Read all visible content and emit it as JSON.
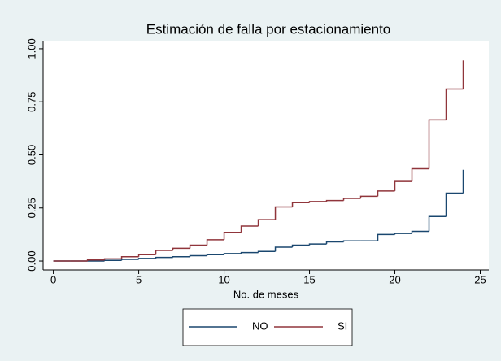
{
  "chart_data": {
    "type": "step",
    "title": "Estimación de falla por estacionamiento",
    "x_label": "No. de meses",
    "x": [
      0,
      1,
      2,
      3,
      4,
      5,
      6,
      7,
      8,
      9,
      10,
      11,
      12,
      13,
      14,
      15,
      16,
      17,
      18,
      19,
      20,
      21,
      22,
      23,
      24
    ],
    "series": [
      {
        "name": "NO",
        "color": "#1a476f",
        "values": [
          0,
          0,
          0,
          0.003,
          0.008,
          0.012,
          0.017,
          0.02,
          0.025,
          0.03,
          0.035,
          0.04,
          0.045,
          0.065,
          0.075,
          0.08,
          0.09,
          0.095,
          0.095,
          0.125,
          0.13,
          0.14,
          0.21,
          0.32,
          0.43
        ]
      },
      {
        "name": "SI",
        "color": "#90353b",
        "values": [
          0,
          0,
          0.005,
          0.01,
          0.02,
          0.03,
          0.05,
          0.06,
          0.075,
          0.1,
          0.135,
          0.165,
          0.195,
          0.255,
          0.275,
          0.28,
          0.285,
          0.295,
          0.305,
          0.33,
          0.375,
          0.435,
          0.665,
          0.81,
          0.945
        ]
      }
    ],
    "xlim": [
      -0.6,
      25.5
    ],
    "xticks": [
      0,
      5,
      10,
      15,
      20,
      25
    ],
    "ylim": [
      -0.042,
      1.038
    ],
    "yticks": [
      {
        "value": 0,
        "label": "0.00"
      },
      {
        "value": 0.25,
        "label": "0.25"
      },
      {
        "value": 0.5,
        "label": "0.50"
      },
      {
        "value": 0.75,
        "label": "0.75"
      },
      {
        "value": 1,
        "label": "1.00"
      }
    ],
    "grid": false,
    "legend": "bottom"
  }
}
